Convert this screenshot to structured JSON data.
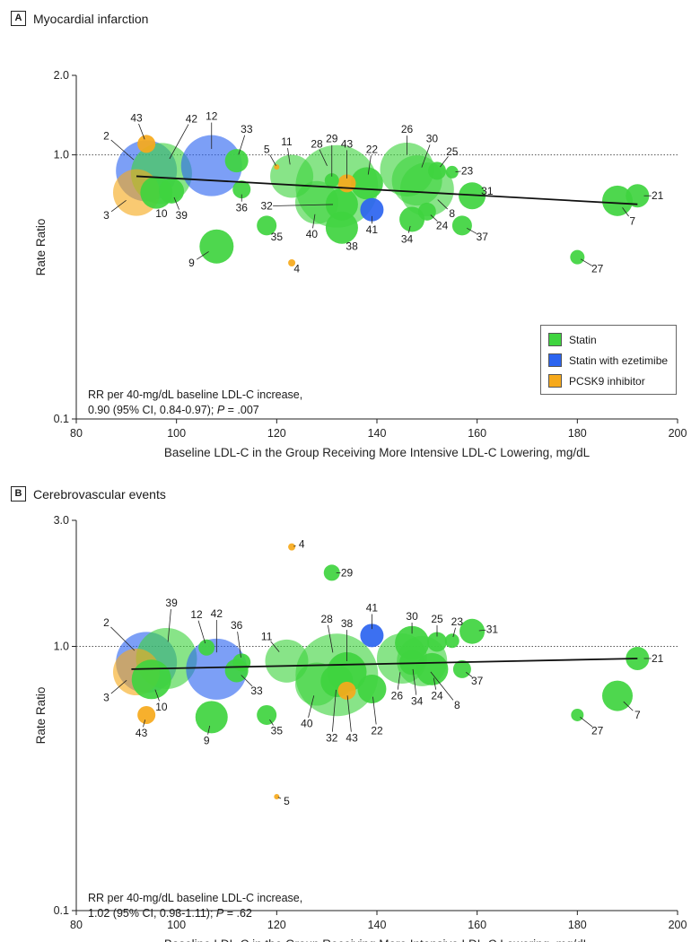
{
  "colors": {
    "statin": "#3fd43f",
    "statin_ezetimibe": "#2b64f0",
    "pcsk9": "#f6a91b"
  },
  "legend": {
    "statin": "Statin",
    "statin_ezetimibe": "Statin with ezetimibe",
    "pcsk9": "PCSK9 inhibitor"
  },
  "chart_data": [
    {
      "type": "scatter",
      "panel_letter": "A",
      "title": "Myocardial infarction",
      "xlabel": "Baseline LDL-C in the Group Receiving More Intensive LDL-C Lowering, mg/dL",
      "ylabel": "Rate Ratio",
      "xlim": [
        80,
        200
      ],
      "ylim": [
        0.1,
        2.0
      ],
      "yscale": "log",
      "xticks": [
        80,
        100,
        120,
        140,
        160,
        180,
        200
      ],
      "yticks": [
        0.1,
        1.0,
        2.0
      ],
      "ytick_labels": [
        "0.1",
        "1.0",
        "2.0"
      ],
      "reference_line": 1.0,
      "annotation_line1": "RR per 40-mg/dL baseline LDL-C increase,",
      "annotation_line2a": "0.90 (95% CI, 0.84-0.97); ",
      "annotation_p": "P",
      "annotation_line2b": " = .007",
      "regression": {
        "x": [
          92,
          192
        ],
        "y": [
          0.83,
          0.65
        ]
      },
      "points": [
        {
          "label": "2",
          "group": "statin_ezetimibe",
          "x": 94,
          "y": 0.87,
          "r": 34,
          "lx": 86,
          "ly": 1.18
        },
        {
          "label": "43",
          "group": "pcsk9",
          "x": 94,
          "y": 1.1,
          "r": 10,
          "lx": 92,
          "ly": 1.38
        },
        {
          "label": "42",
          "group": "statin",
          "x": 97,
          "y": 0.85,
          "r": 34,
          "lx": 103,
          "ly": 1.37
        },
        {
          "label": "12",
          "group": "statin_ezetimibe",
          "x": 107,
          "y": 0.91,
          "r": 34,
          "lx": 107,
          "ly": 1.4
        },
        {
          "label": "3",
          "group": "pcsk9",
          "x": 92,
          "y": 0.72,
          "r": 26,
          "lx": 86,
          "ly": 0.59
        },
        {
          "label": "10",
          "group": "statin",
          "x": 96,
          "y": 0.72,
          "r": 18,
          "lx": 97,
          "ly": 0.6
        },
        {
          "label": "39",
          "group": "statin",
          "x": 99,
          "y": 0.73,
          "r": 14,
          "lx": 101,
          "ly": 0.59
        },
        {
          "label": "33",
          "group": "statin",
          "x": 112,
          "y": 0.95,
          "r": 13,
          "lx": 114,
          "ly": 1.25
        },
        {
          "label": "5",
          "group": "pcsk9",
          "x": 120,
          "y": 0.9,
          "r": 3,
          "lx": 118,
          "ly": 1.05
        },
        {
          "label": "11",
          "group": "statin",
          "x": 123,
          "y": 0.83,
          "r": 24,
          "lx": 122,
          "ly": 1.12
        },
        {
          "label": "28",
          "group": "statin",
          "x": 132,
          "y": 0.76,
          "r": 46,
          "lx": 128,
          "ly": 1.1
        },
        {
          "label": "29",
          "group": "statin",
          "x": 131,
          "y": 0.8,
          "r": 8,
          "lx": 131,
          "ly": 1.15
        },
        {
          "label": "43",
          "group": "pcsk9",
          "x": 134,
          "y": 0.78,
          "r": 10,
          "lx": 134,
          "ly": 1.1
        },
        {
          "label": "22",
          "group": "statin",
          "x": 138,
          "y": 0.78,
          "r": 18,
          "lx": 139,
          "ly": 1.05
        },
        {
          "label": "26",
          "group": "statin",
          "x": 146,
          "y": 0.88,
          "r": 30,
          "lx": 146,
          "ly": 1.25
        },
        {
          "label": "30",
          "group": "statin",
          "x": 148,
          "y": 0.8,
          "r": 28,
          "lx": 151,
          "ly": 1.15
        },
        {
          "label": "25",
          "group": "statin",
          "x": 152,
          "y": 0.87,
          "r": 10,
          "lx": 155,
          "ly": 1.03
        },
        {
          "label": "23",
          "group": "statin",
          "x": 155,
          "y": 0.86,
          "r": 7,
          "lx": 158,
          "ly": 0.87
        },
        {
          "label": "31",
          "group": "statin",
          "x": 159,
          "y": 0.7,
          "r": 15,
          "lx": 162,
          "ly": 0.73
        },
        {
          "label": "8",
          "group": "statin",
          "x": 150,
          "y": 0.74,
          "r": 30,
          "lx": 155,
          "ly": 0.6
        },
        {
          "label": "24",
          "group": "statin",
          "x": 150,
          "y": 0.61,
          "r": 10,
          "lx": 153,
          "ly": 0.54
        },
        {
          "label": "34",
          "group": "statin",
          "x": 147,
          "y": 0.57,
          "r": 14,
          "lx": 146,
          "ly": 0.48
        },
        {
          "label": "41",
          "group": "statin_ezetimibe",
          "x": 139,
          "y": 0.62,
          "r": 13,
          "lx": 139,
          "ly": 0.52
        },
        {
          "label": "32",
          "group": "statin",
          "x": 133,
          "y": 0.65,
          "r": 18,
          "lx": 118,
          "ly": 0.64
        },
        {
          "label": "40",
          "group": "statin",
          "x": 128,
          "y": 0.66,
          "r": 24,
          "lx": 127,
          "ly": 0.5
        },
        {
          "label": "38",
          "group": "statin",
          "x": 133,
          "y": 0.53,
          "r": 18,
          "lx": 135,
          "ly": 0.45
        },
        {
          "label": "36",
          "group": "statin",
          "x": 113,
          "y": 0.74,
          "r": 10,
          "lx": 113,
          "ly": 0.63
        },
        {
          "label": "35",
          "group": "statin",
          "x": 118,
          "y": 0.54,
          "r": 11,
          "lx": 120,
          "ly": 0.49
        },
        {
          "label": "37",
          "group": "statin",
          "x": 157,
          "y": 0.54,
          "r": 11,
          "lx": 161,
          "ly": 0.49
        },
        {
          "label": "9",
          "group": "statin",
          "x": 108,
          "y": 0.45,
          "r": 19,
          "lx": 103,
          "ly": 0.39
        },
        {
          "label": "4",
          "group": "pcsk9",
          "x": 123,
          "y": 0.39,
          "r": 4,
          "lx": 124,
          "ly": 0.37
        },
        {
          "label": "27",
          "group": "statin",
          "x": 180,
          "y": 0.41,
          "r": 8,
          "lx": 184,
          "ly": 0.37
        },
        {
          "label": "7",
          "group": "statin",
          "x": 188,
          "y": 0.67,
          "r": 17,
          "lx": 191,
          "ly": 0.56
        },
        {
          "label": "21",
          "group": "statin",
          "x": 192,
          "y": 0.7,
          "r": 13,
          "lx": 196,
          "ly": 0.7
        }
      ]
    },
    {
      "type": "scatter",
      "panel_letter": "B",
      "title": "Cerebrovascular events",
      "xlabel": "Baseline LDL-C in the Group Receiving More Intensive LDL-C Lowering, mg/dL",
      "ylabel": "Rate Ratio",
      "xlim": [
        80,
        200
      ],
      "ylim": [
        0.1,
        3.0
      ],
      "yscale": "log",
      "xticks": [
        80,
        100,
        120,
        140,
        160,
        180,
        200
      ],
      "yticks": [
        0.1,
        1.0,
        3.0
      ],
      "ytick_labels": [
        "0.1",
        "1.0",
        "3.0"
      ],
      "reference_line": 1.0,
      "annotation_line1": "RR per 40-mg/dL baseline LDL-C increase,",
      "annotation_line2a": "1.02 (95% CI, 0.93-1.11); ",
      "annotation_p": "P",
      "annotation_line2b": " = .62",
      "regression": {
        "x": [
          91,
          192
        ],
        "y": [
          0.82,
          0.9
        ]
      },
      "points": [
        {
          "label": "2",
          "group": "statin_ezetimibe",
          "x": 94,
          "y": 0.87,
          "r": 34,
          "lx": 86,
          "ly": 1.23
        },
        {
          "label": "39",
          "group": "statin",
          "x": 98,
          "y": 0.9,
          "r": 34,
          "lx": 99,
          "ly": 1.46
        },
        {
          "label": "3",
          "group": "pcsk9",
          "x": 92,
          "y": 0.8,
          "r": 26,
          "lx": 86,
          "ly": 0.64
        },
        {
          "label": "10",
          "group": "statin",
          "x": 95,
          "y": 0.75,
          "r": 22,
          "lx": 97,
          "ly": 0.59
        },
        {
          "label": "43",
          "group": "pcsk9",
          "x": 94,
          "y": 0.55,
          "r": 10,
          "lx": 93,
          "ly": 0.47
        },
        {
          "label": "12",
          "group": "statin",
          "x": 106,
          "y": 0.99,
          "r": 9,
          "lx": 104,
          "ly": 1.32
        },
        {
          "label": "42",
          "group": "statin_ezetimibe",
          "x": 108,
          "y": 0.82,
          "r": 34,
          "lx": 108,
          "ly": 1.33
        },
        {
          "label": "36",
          "group": "statin",
          "x": 113,
          "y": 0.87,
          "r": 10,
          "lx": 112,
          "ly": 1.2
        },
        {
          "label": "33",
          "group": "statin",
          "x": 112,
          "y": 0.81,
          "r": 13,
          "lx": 116,
          "ly": 0.68
        },
        {
          "label": "11",
          "group": "statin",
          "x": 122,
          "y": 0.88,
          "r": 24,
          "lx": 118,
          "ly": 1.09
        },
        {
          "label": "28",
          "group": "statin",
          "x": 132,
          "y": 0.78,
          "r": 46,
          "lx": 130,
          "ly": 1.27
        },
        {
          "label": "38",
          "group": "statin",
          "x": 134,
          "y": 0.8,
          "r": 22,
          "lx": 134,
          "ly": 1.22
        },
        {
          "label": "40",
          "group": "statin",
          "x": 128,
          "y": 0.72,
          "r": 24,
          "lx": 126,
          "ly": 0.51
        },
        {
          "label": "32",
          "group": "statin",
          "x": 132,
          "y": 0.74,
          "r": 18,
          "lx": 131,
          "ly": 0.45
        },
        {
          "label": "43",
          "group": "pcsk9",
          "x": 134,
          "y": 0.68,
          "r": 10,
          "lx": 135,
          "ly": 0.45
        },
        {
          "label": "41",
          "group": "statin_ezetimibe",
          "x": 139,
          "y": 1.1,
          "r": 13,
          "lx": 139,
          "ly": 1.4
        },
        {
          "label": "22",
          "group": "statin",
          "x": 139,
          "y": 0.69,
          "r": 16,
          "lx": 140,
          "ly": 0.48
        },
        {
          "label": "4",
          "group": "pcsk9",
          "x": 123,
          "y": 2.38,
          "r": 4,
          "lx": 125,
          "ly": 2.44
        },
        {
          "label": "29",
          "group": "statin",
          "x": 131,
          "y": 1.9,
          "r": 9,
          "lx": 134,
          "ly": 1.9
        },
        {
          "label": "30",
          "group": "statin",
          "x": 147,
          "y": 1.03,
          "r": 19,
          "lx": 147,
          "ly": 1.3
        },
        {
          "label": "25",
          "group": "statin",
          "x": 152,
          "y": 1.04,
          "r": 11,
          "lx": 152,
          "ly": 1.27
        },
        {
          "label": "23",
          "group": "statin",
          "x": 155,
          "y": 1.05,
          "r": 8,
          "lx": 156,
          "ly": 1.24
        },
        {
          "label": "31",
          "group": "statin",
          "x": 159,
          "y": 1.14,
          "r": 14,
          "lx": 163,
          "ly": 1.16
        },
        {
          "label": "26",
          "group": "statin",
          "x": 145,
          "y": 0.9,
          "r": 28,
          "lx": 144,
          "ly": 0.65
        },
        {
          "label": "34",
          "group": "statin",
          "x": 147,
          "y": 0.87,
          "r": 14,
          "lx": 148,
          "ly": 0.62
        },
        {
          "label": "24",
          "group": "statin",
          "x": 151,
          "y": 0.82,
          "r": 18,
          "lx": 152,
          "ly": 0.65
        },
        {
          "label": "8",
          "group": "statin",
          "x": 149,
          "y": 0.88,
          "r": 28,
          "lx": 156,
          "ly": 0.6
        },
        {
          "label": "37",
          "group": "statin",
          "x": 157,
          "y": 0.82,
          "r": 10,
          "lx": 160,
          "ly": 0.74
        },
        {
          "label": "9",
          "group": "statin",
          "x": 107,
          "y": 0.54,
          "r": 18,
          "lx": 106,
          "ly": 0.44
        },
        {
          "label": "35",
          "group": "statin",
          "x": 118,
          "y": 0.55,
          "r": 11,
          "lx": 120,
          "ly": 0.48
        },
        {
          "label": "5",
          "group": "pcsk9",
          "x": 120,
          "y": 0.27,
          "r": 3,
          "lx": 122,
          "ly": 0.26
        },
        {
          "label": "27",
          "group": "statin",
          "x": 180,
          "y": 0.55,
          "r": 7,
          "lx": 184,
          "ly": 0.48
        },
        {
          "label": "7",
          "group": "statin",
          "x": 188,
          "y": 0.65,
          "r": 17,
          "lx": 192,
          "ly": 0.55
        },
        {
          "label": "21",
          "group": "statin",
          "x": 192,
          "y": 0.9,
          "r": 13,
          "lx": 196,
          "ly": 0.9
        }
      ]
    }
  ]
}
